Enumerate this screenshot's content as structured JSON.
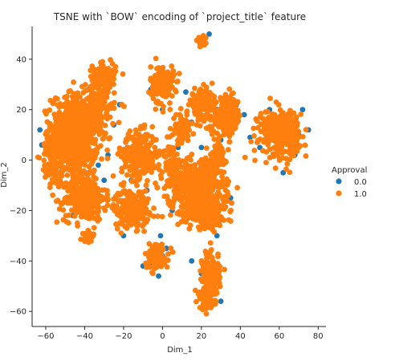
{
  "chart_data": {
    "type": "scatter",
    "title": "TSNE with `BOW` encoding of `project_title` feature",
    "xlabel": "Dim_1",
    "ylabel": "Dim_2",
    "xlim": [
      -67,
      84
    ],
    "ylim": [
      -66,
      53
    ],
    "xticks": [
      -60,
      -40,
      -20,
      0,
      20,
      40,
      60,
      80
    ],
    "yticks": [
      -60,
      -40,
      -20,
      0,
      20,
      40
    ],
    "xtick_labels": [
      "−60",
      "−40",
      "−20",
      "0",
      "20",
      "40",
      "60",
      "80"
    ],
    "ytick_labels": [
      "−60",
      "−40",
      "−20",
      "0",
      "20",
      "40"
    ],
    "grid": false,
    "legend": {
      "title": "Approval",
      "placement": "center-right",
      "entries": [
        "0.0",
        "1.0"
      ]
    },
    "series": [
      {
        "name": "0.0",
        "color": "#1f77b4",
        "points": [
          [
            -63,
            12
          ],
          [
            -62,
            6
          ],
          [
            -60,
            -3
          ],
          [
            -55,
            8
          ],
          [
            -50,
            18
          ],
          [
            -46,
            -22
          ],
          [
            -45,
            20
          ],
          [
            -42,
            5
          ],
          [
            -40,
            10
          ],
          [
            -38,
            -5
          ],
          [
            -36,
            -11
          ],
          [
            -34,
            12
          ],
          [
            -33,
            -2
          ],
          [
            -32,
            25
          ],
          [
            -30,
            -8
          ],
          [
            -28,
            2
          ],
          [
            -25,
            14
          ],
          [
            -22,
            22
          ],
          [
            -20,
            -30
          ],
          [
            -18,
            5
          ],
          [
            -16,
            -8
          ],
          [
            -14,
            -25
          ],
          [
            -12,
            10
          ],
          [
            -10,
            2
          ],
          [
            -8,
            -12
          ],
          [
            -6,
            28
          ],
          [
            -5,
            -41
          ],
          [
            -2,
            -46
          ],
          [
            0,
            20
          ],
          [
            2,
            -35
          ],
          [
            5,
            -20
          ],
          [
            8,
            5
          ],
          [
            10,
            -6
          ],
          [
            12,
            27
          ],
          [
            14,
            -18
          ],
          [
            15,
            -40
          ],
          [
            18,
            25
          ],
          [
            20,
            5
          ],
          [
            22,
            -10
          ],
          [
            24,
            50
          ],
          [
            25,
            -25
          ],
          [
            26,
            -22
          ],
          [
            28,
            -30
          ],
          [
            28,
            20
          ],
          [
            30,
            8
          ],
          [
            30,
            -56
          ],
          [
            32,
            13
          ],
          [
            35,
            -15
          ],
          [
            38,
            22
          ],
          [
            42,
            18
          ],
          [
            45,
            9
          ],
          [
            50,
            5
          ],
          [
            55,
            20
          ],
          [
            60,
            8
          ],
          [
            62,
            -5
          ],
          [
            65,
            16
          ],
          [
            68,
            2
          ],
          [
            70,
            10
          ],
          [
            72,
            20
          ],
          [
            75,
            12
          ],
          [
            -10,
            -42
          ],
          [
            0,
            -38
          ],
          [
            -1,
            -30
          ],
          [
            -48,
            -12
          ],
          [
            -56,
            12
          ],
          [
            -38,
            28
          ],
          [
            -30,
            34
          ],
          [
            20,
            -45
          ],
          [
            28,
            0
          ],
          [
            15,
            15
          ]
        ]
      },
      {
        "name": "1.0",
        "color": "#ff7f0e",
        "clusters": [
          {
            "center": [
              -45,
              10
            ],
            "spread": [
              8,
              11
            ],
            "count": 700
          },
          {
            "center": [
              -40,
              -15
            ],
            "spread": [
              7,
              6
            ],
            "count": 320
          },
          {
            "center": [
              -56,
              2
            ],
            "spread": [
              4,
              8
            ],
            "count": 110
          },
          {
            "center": [
              -30,
              33
            ],
            "spread": [
              4,
              3.5
            ],
            "count": 160
          },
          {
            "center": [
              -12,
              2
            ],
            "spread": [
              6,
              6
            ],
            "count": 290
          },
          {
            "center": [
              -16,
              -19
            ],
            "spread": [
              6,
              5
            ],
            "count": 230
          },
          {
            "center": [
              0,
              30
            ],
            "spread": [
              4,
              5
            ],
            "count": 180
          },
          {
            "center": [
              -3,
              -38
            ],
            "spread": [
              4,
              3.5
            ],
            "count": 120
          },
          {
            "center": [
              18,
              -12
            ],
            "spread": [
              9,
              8
            ],
            "count": 520
          },
          {
            "center": [
              24,
              -22
            ],
            "spread": [
              6,
              4
            ],
            "count": 160
          },
          {
            "center": [
              20,
              22
            ],
            "spread": [
              4,
              4
            ],
            "count": 130
          },
          {
            "center": [
              33,
              17
            ],
            "spread": [
              5,
              5
            ],
            "count": 240
          },
          {
            "center": [
              10,
              12
            ],
            "spread": [
              3,
              4
            ],
            "count": 80
          },
          {
            "center": [
              60,
              11
            ],
            "spread": [
              7,
              6
            ],
            "count": 320
          },
          {
            "center": [
              25,
              -45
            ],
            "spread": [
              3,
              6
            ],
            "count": 130
          },
          {
            "center": [
              23,
              -55
            ],
            "spread": [
              3,
              3
            ],
            "count": 90
          },
          {
            "center": [
              -38,
              -30
            ],
            "spread": [
              2,
              1.5
            ],
            "count": 40
          },
          {
            "center": [
              20,
              47
            ],
            "spread": [
              1.5,
              1.5
            ],
            "count": 25
          },
          {
            "center": [
              28,
              0
            ],
            "spread": [
              3,
              4
            ],
            "count": 60
          },
          {
            "center": [
              -32,
              20
            ],
            "spread": [
              5,
              5
            ],
            "count": 90
          },
          {
            "center": [
              5,
              -3
            ],
            "spread": [
              3,
              6
            ],
            "count": 80
          }
        ]
      }
    ]
  }
}
